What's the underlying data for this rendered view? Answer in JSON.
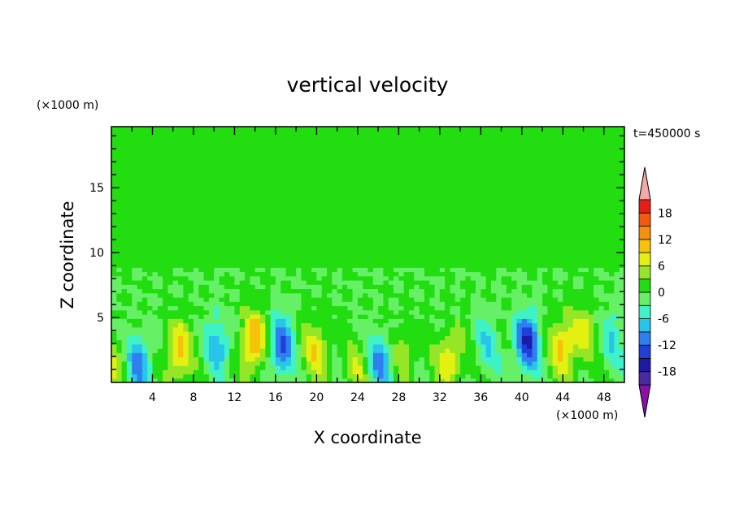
{
  "chart_data": {
    "type": "heatmap",
    "title": "vertical velocity",
    "xlabel": "X coordinate",
    "ylabel": "Z coordinate",
    "x_unit": "(×1000 m)",
    "y_unit": "(×1000 m)",
    "time_label": "t=450000 s",
    "xlim": [
      0,
      50
    ],
    "ylim": [
      0,
      19.7
    ],
    "x_ticks": [
      4,
      8,
      12,
      16,
      20,
      24,
      28,
      32,
      36,
      40,
      44,
      48
    ],
    "y_ticks": [
      5,
      10,
      15
    ],
    "colorbar": {
      "levels": [
        -21,
        -18,
        -15,
        -12,
        -9,
        -6,
        -3,
        0,
        3,
        6,
        9,
        12,
        15,
        18,
        21
      ],
      "tick_labels": [
        18,
        12,
        6,
        0,
        -6,
        -12,
        -18
      ],
      "colors": [
        "#8a10a8",
        "#4a2aa0",
        "#1a1aa8",
        "#1f3fd8",
        "#2f7ff0",
        "#28c4ea",
        "#3ff2c8",
        "#66f066",
        "#22dd10",
        "#96e628",
        "#e4f010",
        "#f6c20a",
        "#f4900a",
        "#f25a0e",
        "#e81e16",
        "#f4a8a8"
      ]
    },
    "features": [
      {
        "x": 0.4,
        "z": 1.0,
        "w": 5
      },
      {
        "x": 2.7,
        "z": 1.5,
        "w": -10
      },
      {
        "x": 6.5,
        "z": 2.3,
        "w": 10
      },
      {
        "x": 10.5,
        "z": 3.0,
        "w": -8
      },
      {
        "x": 13.8,
        "z": 3.2,
        "w": 13
      },
      {
        "x": 16.5,
        "z": 2.7,
        "w": -12
      },
      {
        "x": 20.0,
        "z": 2.6,
        "w": 8
      },
      {
        "x": 24.0,
        "z": 1.0,
        "w": 5
      },
      {
        "x": 26.3,
        "z": 1.6,
        "w": -10
      },
      {
        "x": 28.5,
        "z": 2.3,
        "w": 6
      },
      {
        "x": 33.0,
        "z": 1.8,
        "w": 9
      },
      {
        "x": 36.5,
        "z": 2.8,
        "w": -5
      },
      {
        "x": 40.5,
        "z": 3.1,
        "w": -14
      },
      {
        "x": 44.0,
        "z": 2.8,
        "w": 10
      },
      {
        "x": 46.0,
        "z": 3.8,
        "w": 6
      },
      {
        "x": 49.0,
        "z": 3.5,
        "w": -5
      }
    ]
  }
}
